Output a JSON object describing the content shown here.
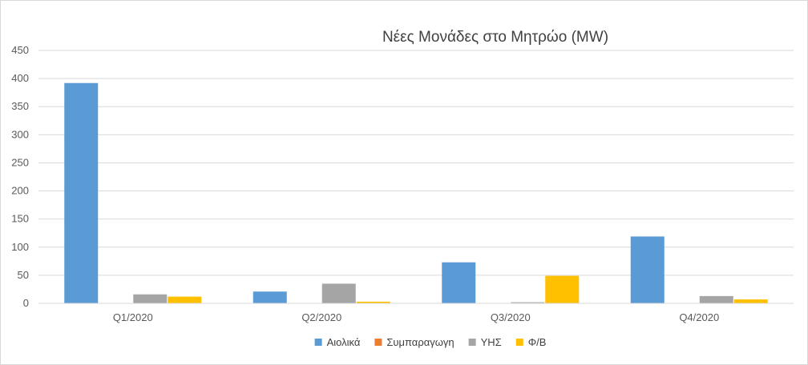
{
  "chart_data": {
    "type": "bar",
    "title": "Νέες Μονάδες στο Μητρώο (MW)",
    "xlabel": "",
    "ylabel": "",
    "ylim": [
      0,
      450
    ],
    "yticks": [
      "0",
      "50",
      "100",
      "150",
      "200",
      "250",
      "300",
      "350",
      "400",
      "450"
    ],
    "categories": [
      "Q1/2020",
      "Q2/2020",
      "Q3/2020",
      "Q4/2020"
    ],
    "series": [
      {
        "name": "Αιολικά",
        "color": "#5b9bd5",
        "values": [
          392,
          21,
          73,
          119
        ]
      },
      {
        "name": "Συμπαραγωγη",
        "color": "#ed7d31",
        "values": [
          0,
          0,
          0,
          0
        ]
      },
      {
        "name": "ΥΗΣ",
        "color": "#a5a5a5",
        "values": [
          16,
          35,
          2,
          13
        ]
      },
      {
        "name": "Φ/Β",
        "color": "#ffc000",
        "values": [
          12,
          3,
          49,
          7
        ]
      }
    ],
    "grid": true,
    "legend_position": "bottom"
  }
}
